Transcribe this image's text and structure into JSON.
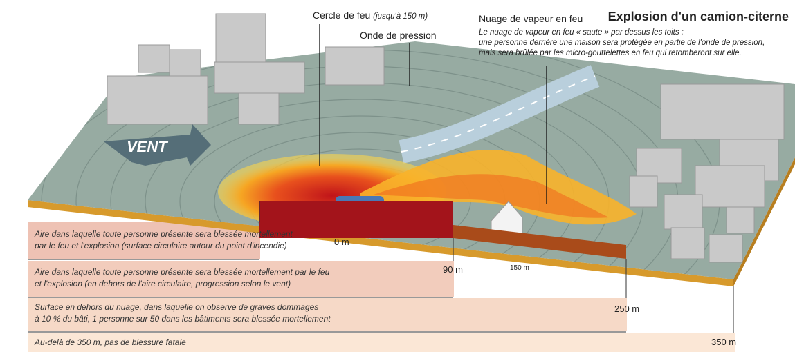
{
  "title": "Explosion d'un camion-citerne",
  "annotations": {
    "fire_circle": {
      "label": "Cercle de feu",
      "note": "(jusqu'à 150 m)"
    },
    "pressure_wave": {
      "label": "Onde de pression"
    },
    "vapour_cloud": {
      "label": "Nuage de vapeur en feu",
      "note_lines": [
        "Le nuage de vapeur en feu « saute » par dessus les toits :",
        "une personne derrière une maison sera protégée en partie de l'onde de pression,",
        "mais sera brûlée par les micro-gouttelettes en feu qui retomberont sur elle."
      ]
    }
  },
  "wind": "VENT",
  "zones": [
    {
      "lines": [
        "Aire dans laquelle toute personne présente sera blessée mortellement",
        "par le feu et l'explosion (surface circulaire autour du point d'incendie)"
      ]
    },
    {
      "lines": [
        "Aire dans laquelle toute personne présente sera blessée mortellement par le feu",
        "et l'explosion (en dehors de l'aire circulaire, progression selon le vent)"
      ]
    },
    {
      "lines": [
        "Surface en dehors du nuage, dans laquelle on observe de graves dommages",
        "à 10 % du bâti, 1 personne sur 50 dans les bâtiments sera blessée mortellement"
      ]
    },
    {
      "lines": [
        "Au-delà de 350 m, pas de blessure fatale"
      ]
    }
  ],
  "distances": [
    "0 m",
    "90 m",
    "150 m",
    "250 m",
    "350 m"
  ]
}
